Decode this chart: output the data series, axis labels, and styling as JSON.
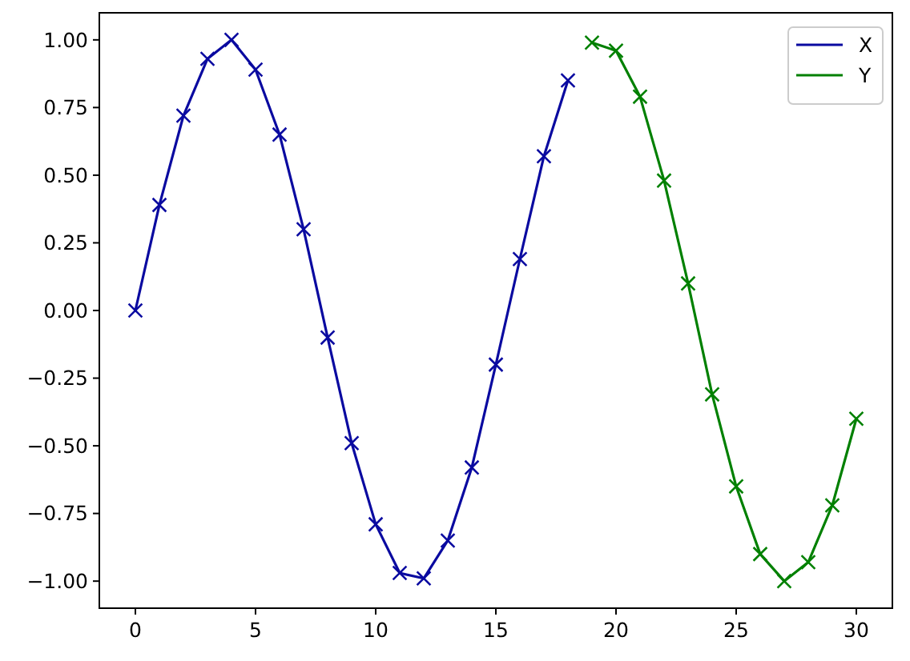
{
  "chart_data": {
    "type": "line",
    "marker": "cross",
    "line_style": "solid",
    "grid": false,
    "legend": "top right",
    "xlim": [
      -1.5,
      31.5
    ],
    "xticks": [
      0,
      5,
      10,
      15,
      20,
      25,
      30
    ],
    "ylim": [
      -1.1,
      1.1
    ],
    "yticks": [
      {
        "value": -1,
        "label": "−1.00"
      },
      {
        "value": -0.75,
        "label": "−0.75"
      },
      {
        "value": -0.5,
        "label": "−0.50"
      },
      {
        "value": -0.25,
        "label": "−0.25"
      },
      {
        "value": 0,
        "label": "0.00"
      },
      {
        "value": 0.25,
        "label": "0.25"
      },
      {
        "value": 0.5,
        "label": "0.50"
      },
      {
        "value": 0.75,
        "label": "0.75"
      },
      {
        "value": 1,
        "label": "1.00"
      }
    ],
    "series": [
      {
        "name": "X",
        "color": "#0a0aa0",
        "x": [
          0,
          1,
          2,
          3,
          4,
          5,
          6,
          7,
          8,
          9,
          10,
          11,
          12,
          13,
          14,
          15,
          16,
          17,
          18
        ],
        "values": [
          0.0,
          0.39,
          0.72,
          0.93,
          1.0,
          0.89,
          0.65,
          0.3,
          -0.1,
          -0.49,
          -0.79,
          -0.97,
          -0.99,
          -0.85,
          -0.58,
          -0.2,
          0.19,
          0.57,
          0.85
        ]
      },
      {
        "name": "Y",
        "color": "#008000",
        "x": [
          19,
          20,
          21,
          22,
          23,
          24,
          25,
          26,
          27,
          28,
          29,
          30
        ],
        "values": [
          0.99,
          0.96,
          0.79,
          0.48,
          0.1,
          -0.31,
          -0.65,
          -0.9,
          -1.0,
          -0.93,
          -0.72,
          -0.4
        ]
      }
    ]
  }
}
